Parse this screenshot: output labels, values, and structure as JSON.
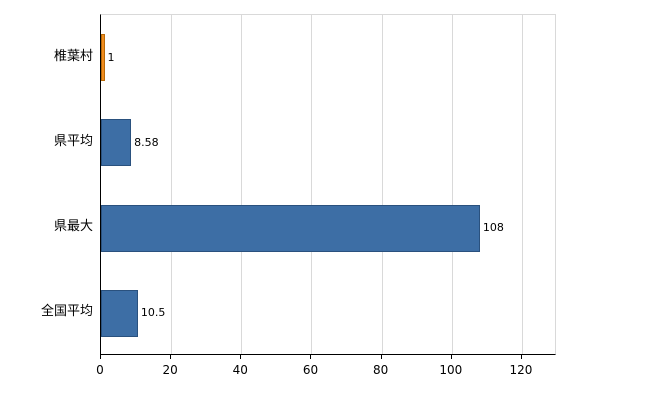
{
  "chart_data": {
    "type": "bar",
    "orientation": "horizontal",
    "title": "",
    "xlabel": "",
    "ylabel": "",
    "categories": [
      "椎葉村",
      "県平均",
      "県最大",
      "全国平均"
    ],
    "values": [
      1,
      8.58,
      108,
      10.5
    ],
    "value_labels": [
      "1",
      "8.58",
      "108",
      "10.5"
    ],
    "bar_fill_colors": [
      "#f08c1e",
      "#3d6ea5",
      "#3d6ea5",
      "#3d6ea5"
    ],
    "bar_border_colors": [
      "#b96a08",
      "#2a517e",
      "#2a517e",
      "#2a517e"
    ],
    "xlim": [
      0,
      130
    ],
    "xticks": [
      0,
      20,
      40,
      60,
      80,
      100,
      120
    ],
    "xtick_labels": [
      "0",
      "20",
      "40",
      "60",
      "80",
      "100",
      "120"
    ],
    "grid": "vertical",
    "legend_position": "none",
    "background_color": "#ffffff",
    "axis_color": "#000000",
    "gridline_color": "#d9d9d9"
  }
}
